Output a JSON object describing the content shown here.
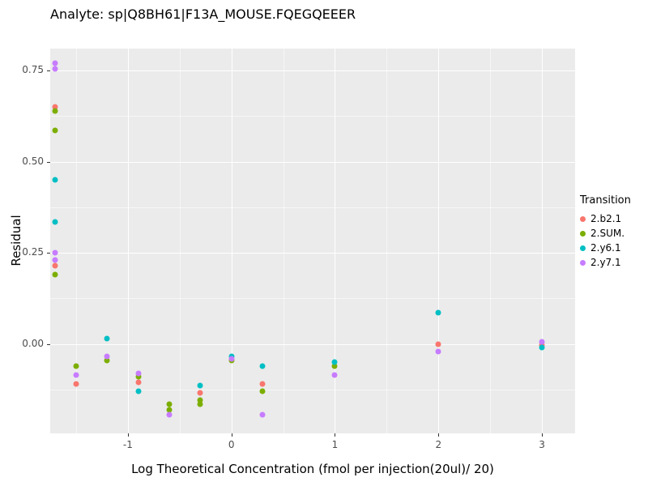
{
  "chart_data": {
    "type": "scatter",
    "title": "Analyte: sp|Q8BH61|F13A_MOUSE.FQEGQEEER",
    "xlabel": "Log Theoretical Concentration (fmol per injection(20ul)/ 20)",
    "ylabel": "Residual",
    "xlim": [
      -1.75,
      3.32
    ],
    "ylim": [
      -0.245,
      0.81
    ],
    "x_ticks": [
      -1,
      0,
      1,
      2,
      3
    ],
    "x_tick_labels": [
      "-1",
      "0",
      "1",
      "2",
      "3"
    ],
    "y_ticks": [
      0.0,
      0.25,
      0.5,
      0.75
    ],
    "y_tick_labels": [
      "0.00",
      "0.25",
      "0.50",
      "0.75"
    ],
    "x_minor": [
      -1.5,
      -0.5,
      0.5,
      1.5,
      2.5
    ],
    "y_minor": [
      -0.125,
      0.125,
      0.375,
      0.625
    ],
    "grid": true,
    "panel_bg": "#EBEBEB",
    "legend": {
      "title": "Transition",
      "position": "right"
    },
    "series": [
      {
        "name": "2.b2.1",
        "color": "#F8766D",
        "points": [
          [
            -1.7,
            0.65
          ],
          [
            -1.7,
            0.215
          ],
          [
            -1.5,
            -0.11
          ],
          [
            -0.9,
            -0.105
          ],
          [
            -0.3,
            -0.135
          ],
          [
            0.3,
            -0.11
          ],
          [
            2,
            0.0
          ],
          [
            3,
            -0.002
          ]
        ]
      },
      {
        "name": "2.SUM.",
        "color": "#7CAE00",
        "points": [
          [
            -1.7,
            0.64
          ],
          [
            -1.7,
            0.585
          ],
          [
            -1.7,
            0.19
          ],
          [
            -1.5,
            -0.06
          ],
          [
            -1.2,
            -0.045
          ],
          [
            -0.9,
            -0.09
          ],
          [
            -0.6,
            -0.165
          ],
          [
            -0.6,
            -0.18
          ],
          [
            -0.3,
            -0.155
          ],
          [
            -0.3,
            -0.165
          ],
          [
            0,
            -0.045
          ],
          [
            0.3,
            -0.13
          ],
          [
            1,
            -0.06
          ]
        ]
      },
      {
        "name": "2.y6.1",
        "color": "#00BFC4",
        "points": [
          [
            -1.7,
            0.45
          ],
          [
            -1.7,
            0.335
          ],
          [
            -1.2,
            0.015
          ],
          [
            -0.9,
            -0.13
          ],
          [
            -0.3,
            -0.115
          ],
          [
            0,
            -0.035
          ],
          [
            0.3,
            -0.06
          ],
          [
            1,
            -0.05
          ],
          [
            2,
            0.085
          ],
          [
            3,
            -0.01
          ]
        ]
      },
      {
        "name": "2.y7.1",
        "color": "#C77CFF",
        "points": [
          [
            -1.7,
            0.77
          ],
          [
            -1.7,
            0.755
          ],
          [
            -1.7,
            0.25
          ],
          [
            -1.7,
            0.23
          ],
          [
            -1.5,
            -0.085
          ],
          [
            -1.2,
            -0.035
          ],
          [
            -0.9,
            -0.08
          ],
          [
            -0.6,
            -0.195
          ],
          [
            0,
            -0.04
          ],
          [
            0.3,
            -0.195
          ],
          [
            1,
            -0.085
          ],
          [
            2,
            -0.02
          ],
          [
            3,
            0.005
          ]
        ]
      }
    ]
  }
}
